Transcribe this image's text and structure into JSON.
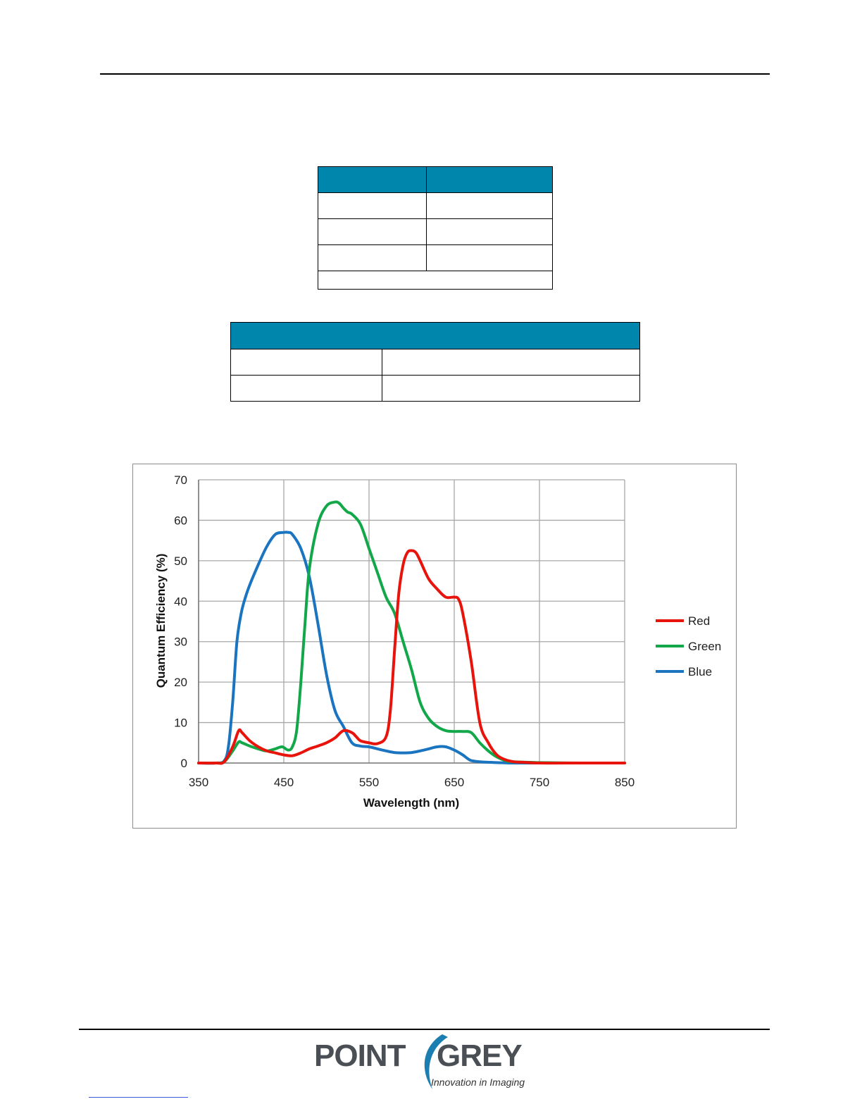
{
  "page": {},
  "colors": {
    "table_header": "#0085ad",
    "red": "#e8140c",
    "green": "#12a84a",
    "blue": "#1a74c0",
    "grid": "#a8a8a8"
  },
  "chart_data": {
    "type": "line",
    "title": "",
    "xlabel": "Wavelength (nm)",
    "ylabel": "Quantum  Efficiency  (%)",
    "xlim": [
      350,
      850
    ],
    "ylim": [
      0,
      70
    ],
    "xticks": [
      350,
      450,
      550,
      650,
      750,
      850
    ],
    "yticks": [
      0,
      10,
      20,
      30,
      40,
      50,
      60,
      70
    ],
    "grid": true,
    "legend_position": "right",
    "series": [
      {
        "name": "Red",
        "color": "#e8140c",
        "x": [
          350,
          370,
          380,
          390,
          397,
          401,
          410,
          420,
          430,
          440,
          450,
          460,
          470,
          480,
          490,
          500,
          510,
          520,
          530,
          535,
          540,
          550,
          560,
          570,
          575,
          580,
          585,
          590,
          595,
          600,
          605,
          610,
          620,
          630,
          640,
          650,
          655,
          660,
          670,
          680,
          690,
          700,
          710,
          720,
          730,
          750,
          800,
          850
        ],
        "y": [
          0,
          0,
          0.3,
          4,
          8,
          7.5,
          5.5,
          4,
          3,
          2.5,
          2,
          1.8,
          2.5,
          3.5,
          4.2,
          5,
          6.2,
          8,
          7.5,
          6.5,
          5.5,
          5,
          4.8,
          6.5,
          13,
          28,
          42,
          49,
          52,
          52.5,
          52,
          50,
          45.5,
          43,
          41,
          41,
          40.5,
          37,
          25,
          10,
          5,
          2,
          0.8,
          0.3,
          0.2,
          0,
          0,
          0
        ]
      },
      {
        "name": "Green",
        "color": "#12a84a",
        "x": [
          350,
          370,
          380,
          390,
          397,
          401,
          410,
          420,
          430,
          440,
          448,
          455,
          460,
          465,
          470,
          475,
          480,
          490,
          500,
          510,
          515,
          520,
          525,
          530,
          540,
          550,
          560,
          570,
          580,
          590,
          600,
          610,
          620,
          630,
          640,
          650,
          660,
          670,
          680,
          690,
          700,
          710,
          720,
          750,
          800,
          850
        ],
        "y": [
          0,
          0,
          0.3,
          3,
          5.2,
          5,
          4.2,
          3.5,
          3,
          3.5,
          4,
          3.2,
          4,
          8,
          20,
          35,
          48,
          59,
          63.5,
          64.5,
          64.2,
          63,
          62,
          61.5,
          59,
          53,
          47,
          41,
          37,
          30,
          23,
          15,
          11,
          9,
          8,
          7.8,
          7.8,
          7.5,
          5,
          3,
          1.5,
          0.6,
          0.3,
          0.1,
          0,
          0
        ]
      },
      {
        "name": "Blue",
        "color": "#1a74c0",
        "x": [
          350,
          370,
          380,
          385,
          390,
          395,
          400,
          405,
          410,
          420,
          430,
          440,
          450,
          455,
          460,
          470,
          480,
          490,
          500,
          510,
          520,
          530,
          540,
          550,
          560,
          570,
          580,
          590,
          600,
          610,
          620,
          630,
          640,
          650,
          660,
          665,
          670,
          680,
          690,
          700,
          710,
          720,
          750,
          800,
          850
        ],
        "y": [
          0,
          0,
          0.5,
          4,
          15,
          30,
          37,
          41,
          44,
          49,
          53.5,
          56.5,
          57,
          57,
          56.5,
          53,
          46,
          34.5,
          22,
          13,
          9,
          5,
          4.2,
          4,
          3.5,
          3,
          2.6,
          2.5,
          2.6,
          3,
          3.5,
          4,
          4,
          3.2,
          2,
          1.2,
          0.6,
          0.3,
          0.2,
          0.1,
          0.05,
          0,
          0,
          0,
          0
        ]
      }
    ]
  }
}
